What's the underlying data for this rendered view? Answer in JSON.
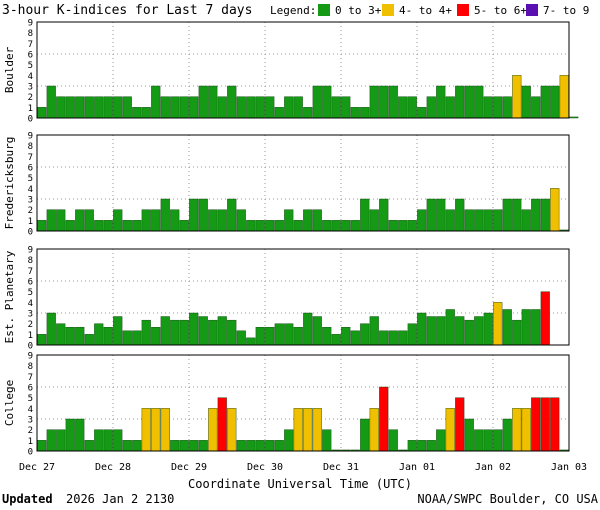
{
  "title": "3-hour K-indices for Last 7 days",
  "legend": {
    "label": "Legend:",
    "items": [
      {
        "label": "0 to 3+",
        "color": "#159a15"
      },
      {
        "label": "4- to 4+",
        "color": "#f0c000"
      },
      {
        "label": "5- to 6+",
        "color": "#ff0000"
      },
      {
        "label": "7- to 9",
        "color": "#5a0fb0"
      }
    ]
  },
  "x_tick_labels": [
    "Dec 27",
    "Dec 28",
    "Dec 29",
    "Dec 30",
    "Dec 31",
    "Jan 01",
    "Jan 02",
    "Jan 03"
  ],
  "xlabel": "Coordinate Universal Time (UTC)",
  "footer": {
    "updated_label": "Updated",
    "updated_value": "2026 Jan  2 2130",
    "credit": "NOAA/SWPC Boulder, CO USA"
  },
  "chart_data": {
    "type": "bar",
    "ylim": [
      0,
      9
    ],
    "y_ticks": [
      0,
      1,
      2,
      3,
      4,
      5,
      6,
      7,
      8,
      9
    ],
    "grid": true,
    "bins_per_day": 8,
    "panels": [
      {
        "name": "Boulder",
        "values": [
          1,
          3,
          2,
          2,
          2,
          2,
          2,
          2,
          2,
          2,
          1,
          1,
          3,
          2,
          2,
          2,
          2,
          3,
          3,
          2,
          3,
          2,
          2,
          2,
          2,
          1,
          2,
          2,
          1,
          3,
          3,
          2,
          2,
          1,
          1,
          3,
          3,
          3,
          2,
          2,
          1,
          2,
          3,
          2,
          3,
          3,
          3,
          2,
          2,
          2,
          4,
          3,
          2,
          3,
          3,
          4,
          0.1
        ]
      },
      {
        "name": "Fredericksburg",
        "values": [
          1,
          2,
          2,
          1,
          2,
          2,
          1,
          1,
          2,
          1,
          1,
          2,
          2,
          3,
          2,
          1,
          3,
          3,
          2,
          2,
          3,
          2,
          1,
          1,
          1,
          1,
          2,
          1,
          2,
          2,
          1,
          1,
          1,
          1,
          3,
          2,
          3,
          1,
          1,
          1,
          2,
          3,
          3,
          2,
          3,
          2,
          2,
          2,
          2,
          3,
          3,
          2,
          3,
          3,
          4,
          0.1
        ]
      },
      {
        "name": "Est. Planetary",
        "values": [
          1,
          3,
          2,
          1.67,
          1.67,
          1,
          2,
          1.67,
          2.67,
          1.33,
          1.33,
          2.33,
          1.67,
          2.67,
          2.33,
          2.33,
          3,
          2.67,
          2.33,
          2.67,
          2.33,
          1.33,
          0.67,
          1.67,
          1.67,
          2,
          2,
          1.67,
          3,
          2.67,
          1.67,
          1,
          1.67,
          1.33,
          2,
          2.67,
          1.33,
          1.33,
          1.33,
          2,
          3,
          2.67,
          2.67,
          3.33,
          2.67,
          2.33,
          2.67,
          3,
          4,
          3.33,
          2.33,
          3.33,
          3.33,
          5
        ]
      },
      {
        "name": "College",
        "values": [
          1,
          2,
          2,
          3,
          3,
          1,
          2,
          2,
          2,
          1,
          1,
          4,
          4,
          4,
          1,
          1,
          1,
          1,
          4,
          5,
          4,
          1,
          1,
          1,
          1,
          1,
          2,
          4,
          4,
          4,
          2,
          0.1,
          0.1,
          0.1,
          3,
          4,
          6,
          2,
          0.1,
          1,
          1,
          1,
          2,
          4,
          5,
          3,
          2,
          2,
          2,
          3,
          4,
          4,
          5,
          5,
          5,
          0.1
        ]
      }
    ]
  }
}
